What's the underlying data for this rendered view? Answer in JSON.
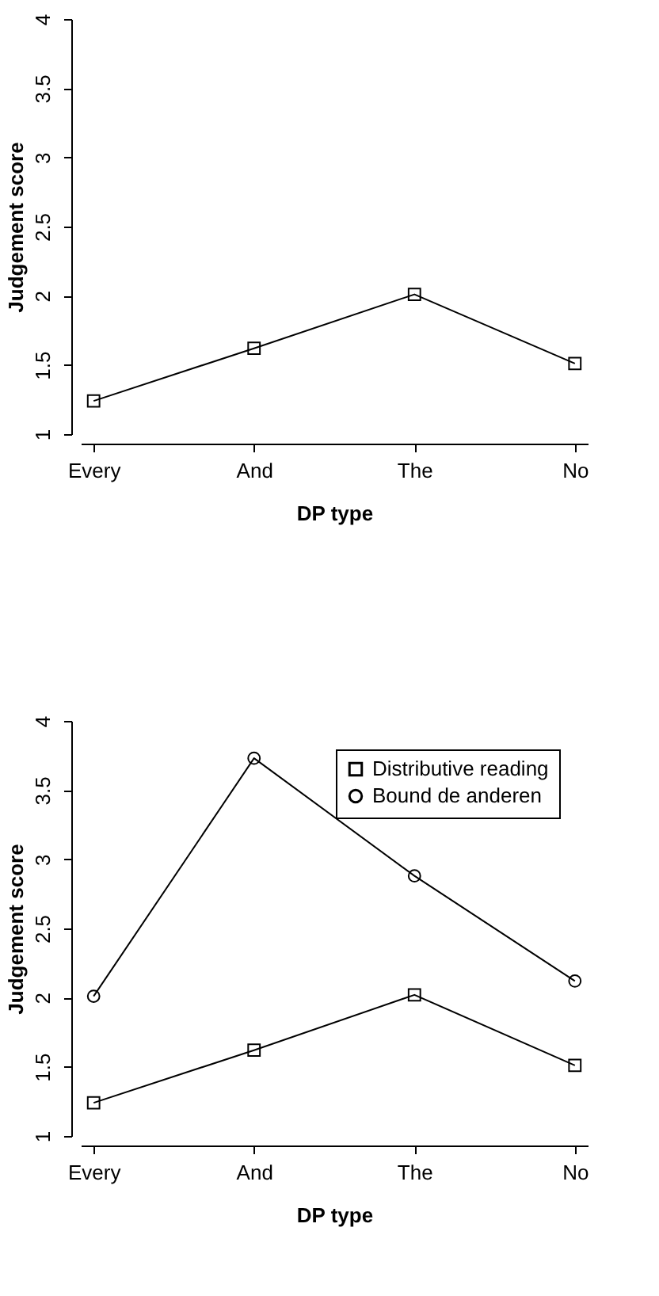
{
  "chart_data": [
    {
      "type": "line",
      "xlabel": "DP type",
      "ylabel": "Judgement score",
      "categories": [
        "Every",
        "And",
        "The",
        "No"
      ],
      "ylim": [
        1,
        4
      ],
      "yticks": [
        1,
        1.5,
        2,
        2.5,
        3,
        3.5,
        4
      ],
      "grid": false,
      "legend": false,
      "series": [
        {
          "color": "#000000",
          "marker": "square",
          "values": [
            1.24,
            1.62,
            2.01,
            1.51
          ]
        }
      ]
    },
    {
      "type": "line",
      "xlabel": "DP type",
      "ylabel": "Judgement score",
      "categories": [
        "Every",
        "And",
        "The",
        "No"
      ],
      "ylim": [
        1,
        4
      ],
      "yticks": [
        1,
        1.5,
        2,
        2.5,
        3,
        3.5,
        4
      ],
      "grid": false,
      "legend": "top right",
      "series": [
        {
          "name": "Distributive reading",
          "color": "#000000",
          "marker": "square",
          "values": [
            1.24,
            1.62,
            2.02,
            1.51
          ]
        },
        {
          "name": "Bound de anderen",
          "color": "#000000",
          "marker": "circle",
          "values": [
            2.01,
            3.73,
            2.88,
            2.12
          ]
        }
      ]
    }
  ]
}
